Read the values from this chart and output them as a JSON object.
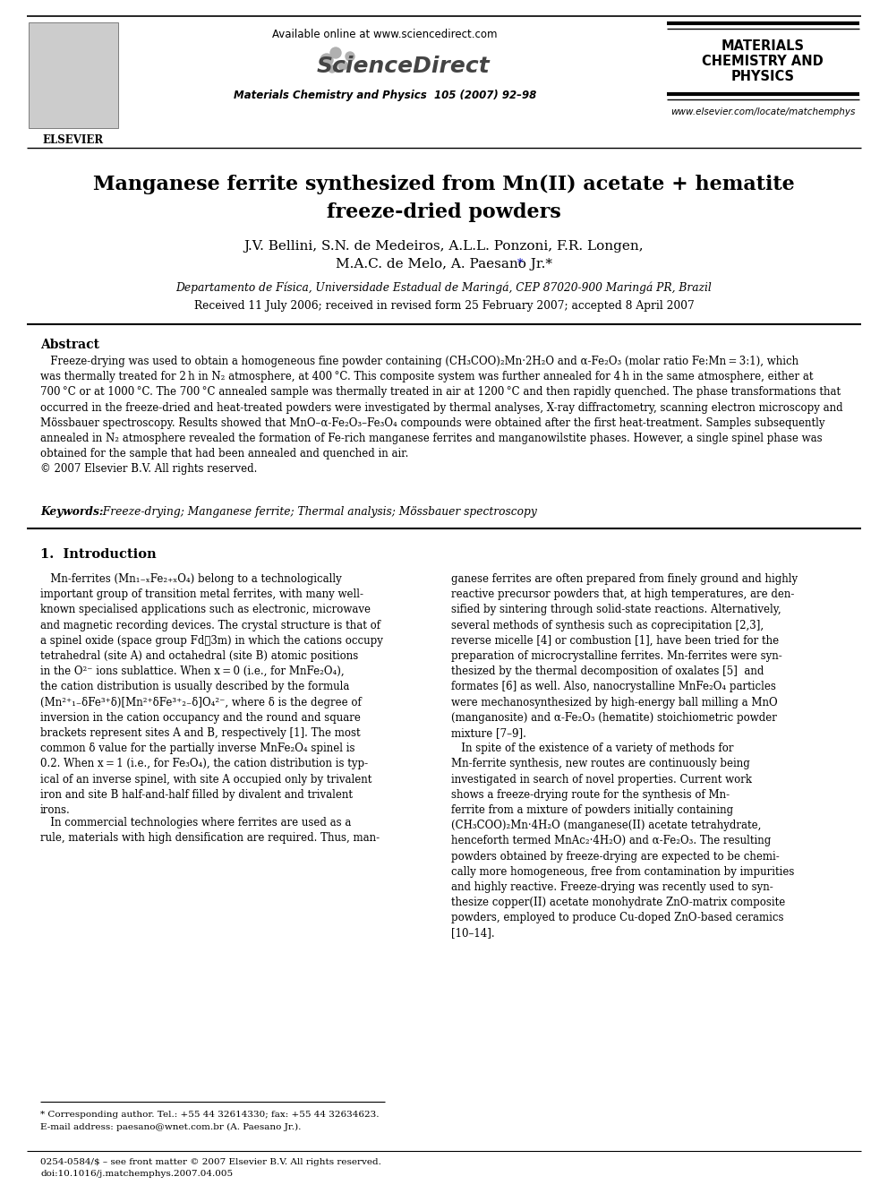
{
  "bg_color": "#ffffff",
  "header": {
    "available_online": "Available online at www.sciencedirect.com",
    "journal_name": "Materials Chemistry and Physics  105 (2007) 92–98",
    "journal_title_lines": [
      "MATERIALS",
      "CHEMISTRY AND",
      "PHYSICS"
    ],
    "elsevier_text": "ELSEVIER",
    "sciencedirect_text": "ScienceDirect",
    "website": "www.elsevier.com/locate/matchemphys"
  },
  "title": "Manganese ferrite synthesized from Mn(II) acetate + hematite\nfreeze-dried powders",
  "authors_line1": "J.V. Bellini, S.N. de Medeiros, A.L.L. Ponzoni, F.R. Longen,",
  "authors_line2": "M.A.C. de Melo, A. Paesano Jr.*",
  "affiliation": "Departamento de Física, Universidade Estadual de Maringá, CEP 87020-900 Maringá PR, Brazil",
  "received": "Received 11 July 2006; received in revised form 25 February 2007; accepted 8 April 2007",
  "abstract_title": "Abstract",
  "abstract_text": "   Freeze-drying was used to obtain a homogeneous fine powder containing (CH₃COO)₂Mn·2H₂O and α-Fe₂O₃ (molar ratio Fe:Mn = 3:1), which\nwas thermally treated for 2 h in N₂ atmosphere, at 400 °C. This composite system was further annealed for 4 h in the same atmosphere, either at\n700 °C or at 1000 °C. The 700 °C annealed sample was thermally treated in air at 1200 °C and then rapidly quenched. The phase transformations that\noccurred in the freeze-dried and heat-treated powders were investigated by thermal analyses, X-ray diffractometry, scanning electron microscopy and\nMössbauer spectroscopy. Results showed that MnO–α-Fe₂O₃–Fe₃O₄ compounds were obtained after the first heat-treatment. Samples subsequently\nannealed in N₂ atmosphere revealed the formation of Fe-rich manganese ferrites and manganowilstite phases. However, a single spinel phase was\nobtained for the sample that had been annealed and quenched in air.\n© 2007 Elsevier B.V. All rights reserved.",
  "keywords_label": "Keywords:",
  "keywords_text": "  Freeze-drying; Manganese ferrite; Thermal analysis; Mössbauer spectroscopy",
  "section1_title": "1.  Introduction",
  "col1_para1": "   Mn-ferrites (Mn₁₋ₓFe₂₊ₓO₄) belong to a technologically\nimportant group of transition metal ferrites, with many well-\nknown specialised applications such as electronic, microwave\nand magnetic recording devices. The crystal structure is that of\na spinel oxide (space group Fd͆3m) in which the cations occupy\ntetrahedral (site A) and octahedral (site B) atomic positions\nin the O²⁻ ions sublattice. When x = 0 (i.e., for MnFe₂O₄),\nthe cation distribution is usually described by the formula\n(Mn²⁺₁₋δFe³⁺δ)[Mn²⁺δFe³⁺₂₋δ]O₄²⁻, where δ is the degree of\ninversion in the cation occupancy and the round and square\nbrackets represent sites A and B, respectively [1]. The most\ncommon δ value for the partially inverse MnFe₂O₄ spinel is\n0.2. When x = 1 (i.e., for Fe₃O₄), the cation distribution is typ-\nical of an inverse spinel, with site A occupied only by trivalent\niron and site B half-and-half filled by divalent and trivalent\nirons.",
  "col1_para2": "   In commercial technologies where ferrites are used as a\nrule, materials with high densification are required. Thus, man-",
  "col2_text": "ganese ferrites are often prepared from finely ground and highly\nreactive precursor powders that, at high temperatures, are den-\nsified by sintering through solid-state reactions. Alternatively,\nseveral methods of synthesis such as coprecipitation [2,3],\nreverse micelle [4] or combustion [1], have been tried for the\npreparation of microcrystalline ferrites. Mn-ferrites were syn-\nthesized by the thermal decomposition of oxalates [5]  and\nformates [6] as well. Also, nanocrystalline MnFe₂O₄ particles\nwere mechanosynthesized by high-energy ball milling a MnO\n(manganosite) and α-Fe₂O₃ (hematite) stoichiometric powder\nmixture [7–9].\n   In spite of the existence of a variety of methods for\nMn-ferrite synthesis, new routes are continuously being\ninvestigated in search of novel properties. Current work\nshows a freeze-drying route for the synthesis of Mn-\nferrite from a mixture of powders initially containing\n(CH₃COO)₂Mn·4H₂O (manganese(II) acetate tetrahydrate,\nhenceforth termed MnAc₂·4H₂O) and α-Fe₂O₃. The resulting\npowders obtained by freeze-drying are expected to be chemi-\ncally more homogeneous, free from contamination by impurities\nand highly reactive. Freeze-drying was recently used to syn-\nthesize copper(II) acetate monohydrate ZnO-matrix composite\npowders, employed to produce Cu-doped ZnO-based ceramics\n[10–14].",
  "footnote_star": "* Corresponding author. Tel.: +55 44 32614330; fax: +55 44 32634623.",
  "footnote_email": "E-mail address: paesano@wnet.com.br (A. Paesano Jr.).",
  "footer_issn": "0254-0584/$ – see front matter © 2007 Elsevier B.V. All rights reserved.",
  "footer_doi": "doi:10.1016/j.matchemphys.2007.04.005"
}
